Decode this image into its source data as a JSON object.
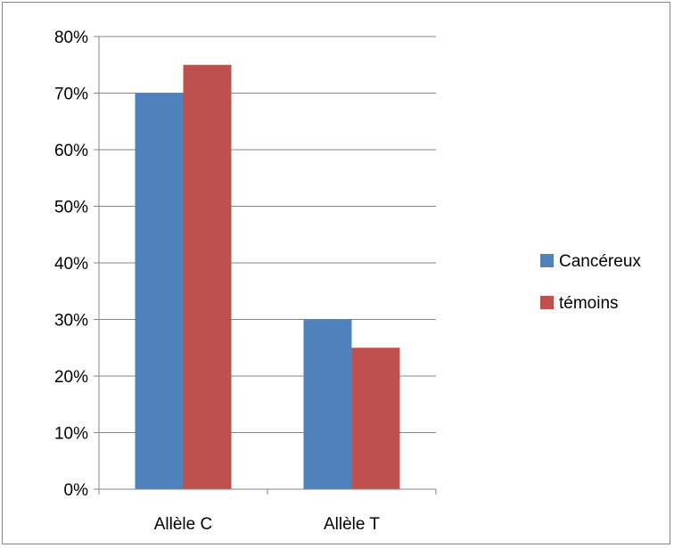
{
  "chart_data": {
    "type": "bar",
    "title": "",
    "xlabel": "",
    "ylabel": "",
    "categories": [
      "Allèle C",
      "Allèle T"
    ],
    "series": [
      {
        "name": "Cancéreux",
        "values": [
          70,
          30
        ],
        "color": "#4F81BD"
      },
      {
        "name": "témoins",
        "values": [
          75,
          25
        ],
        "color": "#C0504D"
      }
    ],
    "ylim": [
      0,
      80
    ],
    "y_ticks": [
      "0%",
      "10%",
      "20%",
      "30%",
      "40%",
      "50%",
      "60%",
      "70%",
      "80%"
    ],
    "grid": true,
    "legend_position": "right"
  }
}
